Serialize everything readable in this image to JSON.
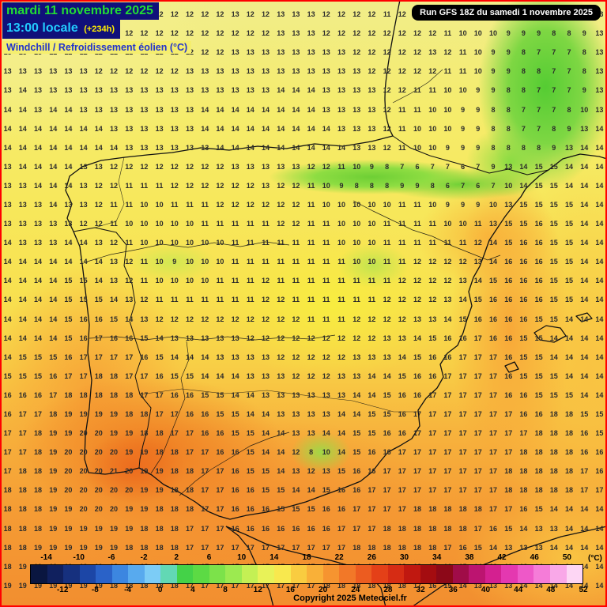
{
  "header": {
    "date_line": "mardi 11 novembre 2025",
    "time_line": "13:00 locale",
    "offset": "(+234h)",
    "subtitle": "Windchill / Refroidissement éolien (°C)",
    "run_info": "Run GFS 18Z du samedi 1 novembre 2025"
  },
  "footer": {
    "copyright": "Copyright 2025 Meteociel.fr"
  },
  "colors": {
    "border": "#ff0000",
    "header_bg": "#10107a",
    "date_text": "#22dd33",
    "time_text": "#22ccff",
    "offset_text": "#ffee00",
    "subtitle_text": "#2233cc",
    "subtitle_bg": "#f5ee6e",
    "run_bg": "#000000",
    "run_text": "#ffffff",
    "grid_text": "#2b2b2b",
    "coast_line": "#111111"
  },
  "scale": {
    "unit": "(°C)",
    "top_labels": [
      -14,
      -10,
      -6,
      -2,
      2,
      6,
      10,
      14,
      18,
      22,
      26,
      30,
      34,
      38,
      42,
      46,
      50
    ],
    "bottom_labels": [
      -12,
      -8,
      -4,
      0,
      4,
      8,
      12,
      16,
      20,
      24,
      28,
      32,
      36,
      40,
      44,
      48,
      52
    ],
    "colors": [
      "#0a1640",
      "#10205e",
      "#16307e",
      "#1c46a6",
      "#2a62c8",
      "#3c86e0",
      "#58aaee",
      "#7cccf6",
      "#62d8b4",
      "#44d248",
      "#5cda44",
      "#7ce24a",
      "#9cea50",
      "#c4f054",
      "#e8f258",
      "#f8e84e",
      "#f9cc40",
      "#f9b038",
      "#f69430",
      "#f27828",
      "#ec5c20",
      "#e44018",
      "#d62c14",
      "#c01810",
      "#a40c10",
      "#8c0818",
      "#a00c48",
      "#bc1470",
      "#d42090",
      "#e438b0",
      "#ee58c8",
      "#f57cd8",
      "#f9a8e8",
      "#fdd6f4"
    ]
  },
  "grid": {
    "rows": [
      "13 12 12 12 12 12 12 12 12 12 12 12 12 12 12 13 12 12 13 13 13 12 12 12 12 11 12 12 13 9 10 13 13 9 9 10 9 9 9 13",
      "12 12 12 12 12 12 12 12 12 12 12 12 12 12 12 12 12 12 13 13 13 12 12 12 12 12 12 12 12 11 10 10 10 9 9 9 8 8 9 13",
      "13 13 13 12 12 12 12 12 12 12 12 12 12 12 12 13 13 13 13 13 13 13 13 12 12 12 12 12 13 12 11 10 9 9 8 7 7 7 8 13",
      "13 13 13 13 13 13 12 12 12 12 12 12 13 13 13 13 13 13 13 13 13 13 13 13 12 12 12 12 12 11 11 10 9 9 8 8 7 7 8 13",
      "13 14 13 13 13 13 13 13 13 13 13 13 13 13 13 13 13 13 14 14 14 13 13 13 13 12 12 11 11 10 10 9 9 8 8 7 7 7 9 13",
      "14 14 13 14 14 13 13 13 13 13 13 13 13 14 14 14 14 14 14 14 14 13 13 13 13 12 11 11 10 10 9 9 8 8 7 7 7 8 10 13",
      "14 14 14 14 14 14 14 13 13 13 13 13 13 14 14 14 14 14 14 14 14 14 13 13 13 12 11 10 10 10 9 9 8 8 7 7 8 9 13 14",
      "14 14 14 14 14 14 14 14 13 13 13 13 13 13 14 14 14 14 14 14 14 14 14 13 13 12 11 10 10 9 9 9 8 8 8 8 9 13 14 14",
      "13 14 14 14 14 13 13 12 12 12 12 12 12 12 12 13 13 13 13 13 12 12 11 10 9 8 7 6 7 7 6 7 9 13 14 15 15 14 14 14",
      "13 13 14 14 14 13 12 12 11 11 11 12 12 12 12 12 12 13 12 12 11 10 9 8 8 8 9 9 8 6 7 6 7 10 14 15 15 14 14 14",
      "13 13 13 14 13 13 12 11 11 10 10 11 11 11 12 12 12 12 12 12 11 10 10 10 10 10 11 11 10 9 9 9 10 13 15 15 15 15 14 14",
      "13 13 13 13 13 12 12 11 10 10 10 10 10 11 11 11 11 11 12 12 11 11 10 10 10 11 11 11 11 10 10 11 13 15 15 16 15 15 14 14",
      "14 13 13 13 14 14 13 12 11 10 10 10 10 10 10 11 11 11 11 11 11 11 10 10 10 11 11 11 11 11 11 12 14 15 16 16 15 15 14 14",
      "14 14 14 14 14 14 14 13 12 11 10 9 10 10 10 11 11 11 11 11 11 11 11 10 10 11 11 12 12 12 12 13 14 16 16 16 15 15 14 14",
      "14 14 14 14 15 15 14 13 12 11 10 10 10 10 11 11 11 12 11 11 11 11 11 11 11 11 12 12 12 12 13 14 15 16 16 16 15 15 14 14",
      "14 14 14 14 15 15 15 14 13 12 11 11 11 11 11 11 11 12 12 11 11 11 11 11 11 12 12 12 12 13 14 15 16 16 16 16 15 15 14 14",
      "14 14 14 14 15 16 16 15 14 13 12 12 12 12 12 12 12 12 12 12 11 11 11 12 12 12 12 13 13 14 15 16 16 16 16 15 15 14 14 14",
      "14 14 14 14 15 16 17 16 16 15 14 13 13 13 13 13 12 12 12 12 12 12 12 12 12 13 13 14 15 16 16 17 16 16 15 15 14 14 14 14",
      "14 15 15 15 16 17 17 17 17 16 15 14 14 14 13 13 13 13 12 12 12 12 12 13 13 13 14 15 16 16 17 17 17 16 15 15 14 14 14 14",
      "15 15 15 16 17 17 18 18 17 17 16 15 15 14 14 14 13 13 13 12 12 12 13 13 14 14 15 16 16 17 17 17 17 16 15 15 15 14 14 14",
      "16 16 16 17 18 18 18 18 18 17 17 16 16 15 15 14 14 13 13 13 13 13 13 14 14 15 16 16 17 17 17 17 17 16 16 15 15 15 14 14",
      "16 17 17 18 19 19 19 19 18 18 17 17 16 16 15 15 14 14 13 13 13 13 14 14 15 15 16 17 17 17 17 17 17 17 16 16 18 18 15 15",
      "17 17 18 19 19 20 20 19 19 18 18 17 17 16 16 15 15 14 14 13 13 14 14 15 15 16 16 17 17 17 17 17 17 17 17 18 18 18 16 15",
      "17 17 18 19 20 20 20 20 19 19 18 18 17 17 16 16 15 14 14 12 8 10 14 15 16 16 17 17 17 17 17 17 17 17 18 18 18 18 16 16",
      "17 18 18 19 20 20 20 21 20 19 19 18 18 17 17 16 15 15 14 13 12 13 15 16 16 17 17 17 17 17 17 17 17 18 18 18 18 18 17 16",
      "18 18 18 19 20 20 20 20 20 19 19 18 18 17 17 16 16 15 15 14 14 15 16 16 17 17 17 17 17 17 17 17 17 18 18 18 18 18 17 17",
      "18 18 18 19 19 20 20 20 19 19 18 18 18 17 17 16 16 16 15 15 15 16 16 17 17 17 17 18 18 18 18 18 17 17 16 15 14 14 14 14",
      "18 18 18 19 19 19 19 19 19 18 18 18 17 17 17 16 16 16 16 16 16 16 17 17 17 18 18 18 18 18 18 17 16 15 14 13 13 14 14 14",
      "18 18 19 19 19 19 19 19 18 18 18 18 17 17 17 17 17 17 17 17 17 17 17 18 18 18 18 18 18 17 16 15 14 13 13 13 14 14 14 14",
      "18 19 19 19 19 19 19 18 18 18 18 17 17 17 17 17 17 17 17 17 17 17 18 18 18 18 18 18 17 16 15 14 13 13 13 14 14 14 14 14",
      "19 19 19 19 19 19 19 18 18 18 18 18 17 17 17 17 17 17 17 17 17 18 18 18 18 18 18 17 16 15 14 13 13 13 14 14 14 14 14 14"
    ]
  }
}
